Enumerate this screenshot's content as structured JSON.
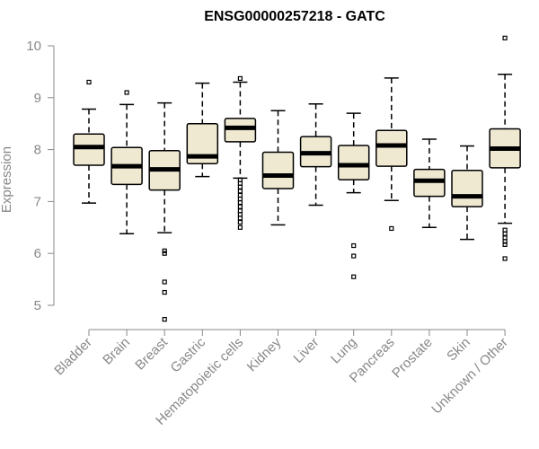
{
  "chart_data": {
    "type": "boxplot",
    "title": "ENSG00000257218 - GATC",
    "xlabel": "",
    "ylabel": "Expression",
    "ylim": [
      4.6,
      10.3
    ],
    "yticks": [
      5,
      6,
      7,
      8,
      9,
      10
    ],
    "categories": [
      "Bladder",
      "Brain",
      "Breast",
      "Gastric",
      "Hematopoietic cells",
      "Kidney",
      "Liver",
      "Lung",
      "Pancreas",
      "Prostate",
      "Skin",
      "Unknown / Other"
    ],
    "boxes": [
      {
        "category": "Bladder",
        "whisker_low": 6.97,
        "q1": 7.7,
        "median": 8.05,
        "q3": 8.3,
        "whisker_high": 8.78,
        "outliers": [
          9.3
        ]
      },
      {
        "category": "Brain",
        "whisker_low": 6.38,
        "q1": 7.33,
        "median": 7.68,
        "q3": 8.04,
        "whisker_high": 8.87,
        "outliers": [
          9.1
        ]
      },
      {
        "category": "Breast",
        "whisker_low": 6.4,
        "q1": 7.22,
        "median": 7.62,
        "q3": 7.98,
        "whisker_high": 8.9,
        "outliers": [
          6.0,
          6.05,
          5.45,
          5.25,
          4.73
        ]
      },
      {
        "category": "Gastric",
        "whisker_low": 7.48,
        "q1": 7.73,
        "median": 7.87,
        "q3": 8.5,
        "whisker_high": 9.28,
        "outliers": []
      },
      {
        "category": "Hematopoietic cells",
        "whisker_low": 7.45,
        "q1": 8.15,
        "median": 8.42,
        "q3": 8.6,
        "whisker_high": 9.3,
        "outliers": [
          9.37,
          7.42,
          7.35,
          7.28,
          7.2,
          7.12,
          7.05,
          6.98,
          6.9,
          6.82,
          6.75,
          6.68,
          6.6,
          6.5
        ]
      },
      {
        "category": "Kidney",
        "whisker_low": 6.55,
        "q1": 7.25,
        "median": 7.5,
        "q3": 7.95,
        "whisker_high": 8.75,
        "outliers": []
      },
      {
        "category": "Liver",
        "whisker_low": 6.93,
        "q1": 7.67,
        "median": 7.93,
        "q3": 8.25,
        "whisker_high": 8.88,
        "outliers": []
      },
      {
        "category": "Lung",
        "whisker_low": 7.17,
        "q1": 7.42,
        "median": 7.7,
        "q3": 8.08,
        "whisker_high": 8.7,
        "outliers": [
          6.15,
          5.95,
          5.55
        ]
      },
      {
        "category": "Pancreas",
        "whisker_low": 7.02,
        "q1": 7.68,
        "median": 8.08,
        "q3": 8.37,
        "whisker_high": 9.38,
        "outliers": [
          6.48
        ]
      },
      {
        "category": "Prostate",
        "whisker_low": 6.5,
        "q1": 7.1,
        "median": 7.4,
        "q3": 7.62,
        "whisker_high": 8.2,
        "outliers": []
      },
      {
        "category": "Skin",
        "whisker_low": 6.27,
        "q1": 6.9,
        "median": 7.1,
        "q3": 7.6,
        "whisker_high": 8.07,
        "outliers": []
      },
      {
        "category": "Unknown / Other",
        "whisker_low": 6.58,
        "q1": 7.65,
        "median": 8.02,
        "q3": 8.4,
        "whisker_high": 9.45,
        "outliers": [
          10.15,
          6.45,
          6.38,
          6.3,
          6.23,
          6.17,
          5.9
        ]
      }
    ],
    "colors": {
      "box_fill": "#efe9d2",
      "box_stroke": "#000000",
      "axis": "#888888",
      "label": "#888888"
    },
    "grid": false
  }
}
